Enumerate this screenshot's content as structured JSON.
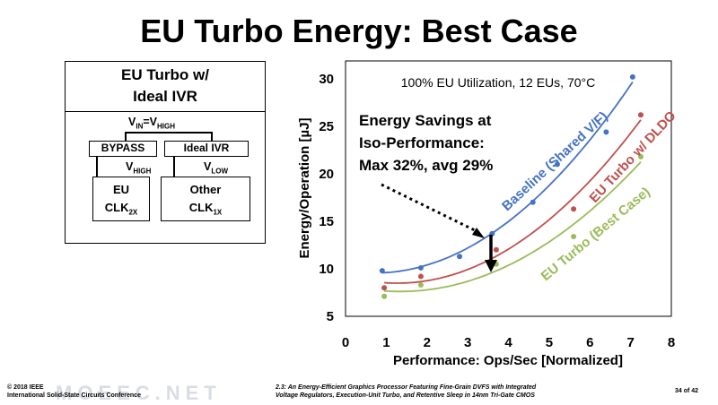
{
  "slide": {
    "title": "EU Turbo Energy: Best Case"
  },
  "diagram": {
    "header_line1": "EU Turbo w/",
    "header_line2": "Ideal IVR",
    "vin_label": "V",
    "vin_sub": "IN",
    "vin_eq": "=V",
    "vin_sub2": "HIGH",
    "bypass_label": "BYPASS",
    "ideal_ivr_label": "Ideal IVR",
    "vhigh_label": "V",
    "vhigh_sub": "HIGH",
    "vlow_label": "V",
    "vlow_sub": "LOW",
    "eu_label": "EU",
    "eu_clk": "CLK",
    "eu_clk_sub": "2X",
    "other_label": "Other",
    "other_clk": "CLK",
    "other_clk_sub": "1X"
  },
  "chart_data": {
    "type": "scatter",
    "xlabel": "Performance: Ops/Sec [Normalized]",
    "ylabel": "Energy/Operation [µJ]",
    "xlim": [
      0,
      8
    ],
    "ylim": [
      5,
      30
    ],
    "xticks": [
      "0",
      "1",
      "2",
      "3",
      "4",
      "5",
      "6",
      "7",
      "8"
    ],
    "yticks": [
      "5",
      "10",
      "15",
      "20",
      "25",
      "30"
    ],
    "grid": false,
    "annotation_top": "100% EU Utilization, 12 EUs, 70°C",
    "savings_line1": "Energy Savings at",
    "savings_line2": "Iso-Performance:",
    "savings_line3": "Max 32%, avg 29%",
    "series": [
      {
        "name": "Baseline (Shared V/F)",
        "color": "#4472c4",
        "x": [
          0.9,
          1.85,
          2.8,
          3.6,
          4.6,
          5.2,
          6.4,
          7.05
        ],
        "y": [
          9.8,
          10.1,
          11.3,
          13.7,
          17.0,
          21.0,
          24.4,
          30.2
        ]
      },
      {
        "name": "EU Turbo w/ DLDO",
        "color": "#c0504d",
        "x": [
          0.95,
          1.85,
          3.7,
          5.6,
          7.25
        ],
        "y": [
          8.0,
          9.2,
          12.0,
          16.3,
          26.2
        ]
      },
      {
        "name": "EU Turbo (Best Case)",
        "color": "#9bbb59",
        "x": [
          0.95,
          1.85,
          3.7,
          5.6,
          7.25
        ],
        "y": [
          7.1,
          8.3,
          10.5,
          13.4,
          21.8
        ]
      }
    ]
  },
  "footer": {
    "copyright_line1": "© 2018 IEEE",
    "copyright_line2": "International Solid-State Circuits Conference",
    "paper_line1": "2.3: An Energy-Efficient Graphics Processor Featuring Fine-Grain DVFS with Integrated",
    "paper_line2": "Voltage Regulators, Execution-Unit Turbo, and Retentive Sleep in 14nm Tri-Gate CMOS",
    "page": "34 of 42",
    "watermark": "MOEEC.NET"
  }
}
